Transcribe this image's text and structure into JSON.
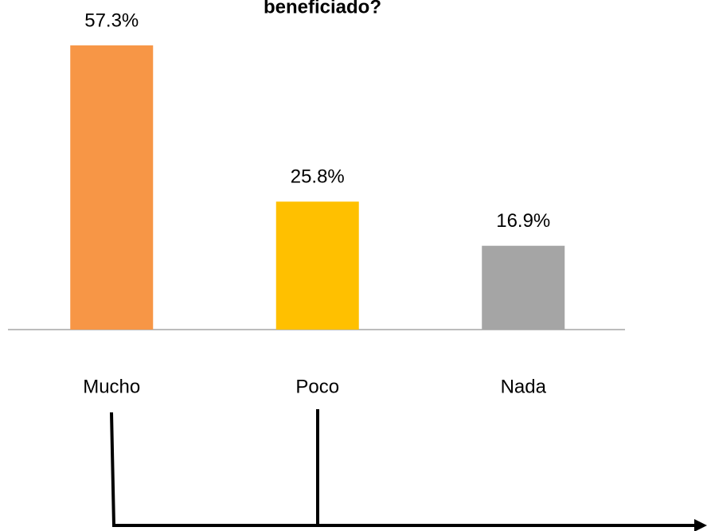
{
  "chart_data": {
    "type": "bar",
    "title": "beneficiado?",
    "categories": [
      "Mucho",
      "Poco",
      "Nada"
    ],
    "values": [
      57.3,
      25.8,
      16.9
    ],
    "value_labels": [
      "57.3%",
      "25.8%",
      "16.9%"
    ],
    "colors": [
      "#f79646",
      "#ffc000",
      "#a5a5a5"
    ]
  }
}
